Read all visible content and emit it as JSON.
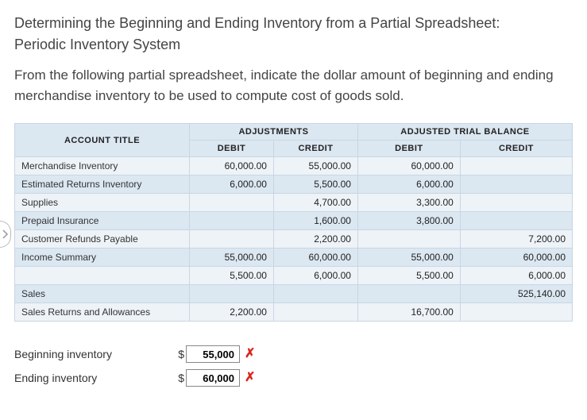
{
  "title_line1": "Determining the Beginning and Ending Inventory from a Partial Spreadsheet:",
  "title_line2": "Periodic Inventory System",
  "instructions": "From the following partial spreadsheet, indicate the dollar amount of beginning and ending merchandise inventory to be used to compute cost of goods sold.",
  "headers": {
    "account_title": "ACCOUNT TITLE",
    "adjustments": "ADJUSTMENTS",
    "adjusted_trial_balance": "ADJUSTED TRIAL BALANCE",
    "debit": "DEBIT",
    "credit": "CREDIT"
  },
  "rows": [
    {
      "label": "Merchandise Inventory",
      "adj_debit": "60,000.00",
      "adj_credit": "55,000.00",
      "atb_debit": "60,000.00",
      "atb_credit": ""
    },
    {
      "label": "Estimated Returns Inventory",
      "adj_debit": "6,000.00",
      "adj_credit": "5,500.00",
      "atb_debit": "6,000.00",
      "atb_credit": ""
    },
    {
      "label": "Supplies",
      "adj_debit": "",
      "adj_credit": "4,700.00",
      "atb_debit": "3,300.00",
      "atb_credit": ""
    },
    {
      "label": "Prepaid Insurance",
      "adj_debit": "",
      "adj_credit": "1,600.00",
      "atb_debit": "3,800.00",
      "atb_credit": ""
    },
    {
      "label": "Customer Refunds Payable",
      "adj_debit": "",
      "adj_credit": "2,200.00",
      "atb_debit": "",
      "atb_credit": "7,200.00"
    },
    {
      "label": "Income Summary",
      "adj_debit": "55,000.00",
      "adj_credit": "60,000.00",
      "atb_debit": "55,000.00",
      "atb_credit": "60,000.00"
    },
    {
      "label": "",
      "adj_debit": "5,500.00",
      "adj_credit": "6,000.00",
      "atb_debit": "5,500.00",
      "atb_credit": "6,000.00"
    },
    {
      "label": "Sales",
      "adj_debit": "",
      "adj_credit": "",
      "atb_debit": "",
      "atb_credit": "525,140.00"
    },
    {
      "label": "Sales Returns and Allowances",
      "adj_debit": "2,200.00",
      "adj_credit": "",
      "atb_debit": "16,700.00",
      "atb_credit": ""
    }
  ],
  "banding": [
    "a",
    "b",
    "a",
    "b",
    "a",
    "b",
    "a",
    "b",
    "a"
  ],
  "answers": {
    "beginning_label": "Beginning inventory",
    "beginning_value": "55,000",
    "ending_label": "Ending inventory",
    "ending_value": "60,000",
    "currency": "$",
    "mark": "✗"
  },
  "colors": {
    "header_bg": "#dbe7f1",
    "band_a": "#eef3f8",
    "band_b": "#dbe7f1",
    "border": "#c9d6e3",
    "wrong_mark": "#d9261c"
  }
}
